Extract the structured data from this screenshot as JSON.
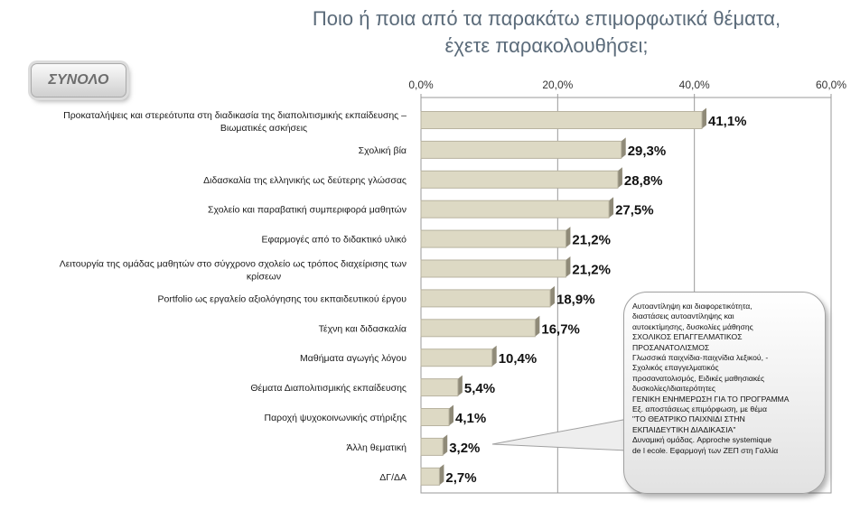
{
  "title_line1": "Ποιο ή ποια από τα παρακάτω επιμορφωτικά θέματα,",
  "title_line2": "έχετε παρακολουθήσει;",
  "badge": "ΣΥΝΟΛΟ",
  "callout_lines": [
    "Αυτοαντίληψη και διαφορετικότητα,",
    "διαστάσεις αυτοαντίληψης και",
    "αυτοεκτίμησης, δυσκολίες μάθησης",
    "ΣΧΟΛΙΚΟΣ ΕΠΑΓΓΕΛΜΑΤΙΚΟΣ",
    "ΠΡΟΣΑΝΑΤΟΛΙΣΜΟΣ",
    "Γλωσσικά παιχνίδια-παιχνίδια λεξικού, -",
    "Σχολικός επαγγελματικός",
    "προσανατολισμός, Ειδικές μαθησιακές",
    "δυσκολίες/ιδιαιτερότητες",
    "ΓΕΝΙΚΗ ΕΝΗΜΕΡΩΣΗ ΓΙΑ ΤΟ ΠΡΟΓΡΑΜΜΑ",
    "Εξ. αποστάσεως επιμόρφωση, με θέμα",
    "\"ΤΟ ΘΕΑΤΡΙΚΟ ΠΑΙΧΝΙΔΙ ΣΤΗΝ",
    "ΕΚΠΑΙΔΕΥΤΙΚΗ ΔΙΑΔΙΚΑΣΙΑ\"",
    "Δυναμική ομάδας. Approche systemique",
    "de l ecole. Εφαρμογή των ΖΕΠ στη Γαλλία"
  ],
  "colors": {
    "bar": "#ddd9c4",
    "bar_edge": "#b8b3a0",
    "grid": "#9a9a9a",
    "title": "#5b6b7a"
  },
  "chart_data": {
    "type": "bar",
    "orientation": "horizontal",
    "xlim": [
      0,
      60
    ],
    "xticks": [
      "0,0%",
      "20,0%",
      "40,0%",
      "60,0%"
    ],
    "xtick_values": [
      0,
      20,
      40,
      60
    ],
    "grid": true,
    "categories": [
      [
        "Προκαταλήψεις και στερεότυπα στη διαδικασία της διαπολιτισμικής εκπαίδευσης –",
        "Βιωματικές ασκήσεις"
      ],
      [
        "Σχολική βία"
      ],
      [
        "Διδασκαλία της ελληνικής ως δεύτερης γλώσσας"
      ],
      [
        "Σχολείο και παραβατική συμπεριφορά μαθητών"
      ],
      [
        "Εφαρμογές από το διδακτικό υλικό"
      ],
      [
        "Λειτουργία της ομάδας μαθητών στο σύγχρονο σχολείο ως τρόπος διαχείρισης των",
        "κρίσεων"
      ],
      [
        "Portfolio ως εργαλείο αξιολόγησης του εκπαιδευτικού έργου"
      ],
      [
        "Τέχνη και διδασκαλία"
      ],
      [
        "Μαθήματα αγωγής λόγου"
      ],
      [
        "Θέματα Διαπολιτισμικής εκπαίδευσης"
      ],
      [
        "Παροχή ψυχοκοινωνικής στήριξης"
      ],
      [
        "Άλλη θεματική"
      ],
      [
        "ΔΓ/ΔΑ"
      ]
    ],
    "values": [
      41.1,
      29.3,
      28.8,
      27.5,
      21.2,
      21.2,
      18.9,
      16.7,
      10.4,
      5.4,
      4.1,
      3.2,
      2.7
    ],
    "value_labels": [
      "41,1%",
      "29,3%",
      "28,8%",
      "27,5%",
      "21,2%",
      "21,2%",
      "18,9%",
      "16,7%",
      "10,4%",
      "5,4%",
      "4,1%",
      "3,2%",
      "2,7%"
    ]
  }
}
